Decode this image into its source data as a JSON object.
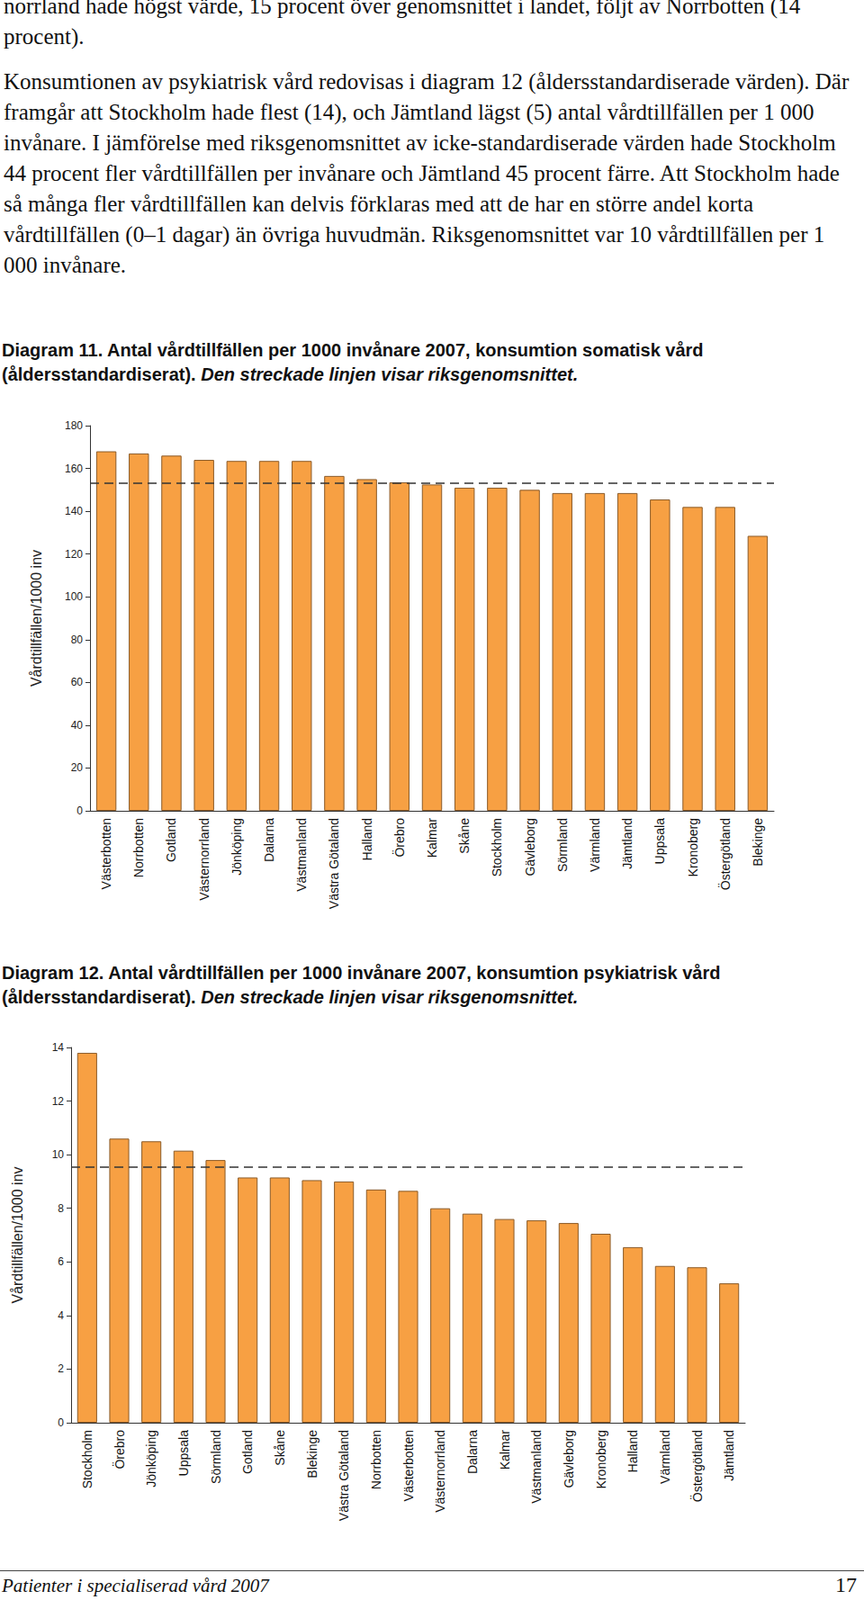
{
  "page": {
    "paragraphs": [
      "norrland hade högst värde, 15 procent över genomsnittet i landet, följt av Norrbotten (14 procent).",
      "Konsumtionen av psykiatrisk vård redovisas i diagram 12 (åldersstandardiserade värden). Där framgår att Stockholm hade flest (14), och Jämtland lägst (5) antal vårdtillfällen per 1 000 invånare. I jämförelse med riksgenomsnittet av icke-standardiserade värden hade Stockholm 44 procent fler vårdtillfällen per invånare och Jämtland 45 procent färre. Att Stockholm hade så många fler vårdtillfällen kan delvis förklaras med att de har en större andel korta vårdtillfällen (0–1 dagar) än övriga huvudmän. Riksgenomsnittet var 10 vårdtillfällen per 1 000 invånare."
    ],
    "footer": "Patienter i specialiserad vård 2007",
    "page_number": "17"
  },
  "chart_data": [
    {
      "type": "bar",
      "title": "Diagram 11. Antal vårdtillfällen per 1000 invånare 2007, konsumtion somatisk vård (åldersstandardiserat).",
      "subtitle": "Den streckade linjen visar riksgenomsnittet.",
      "y_label": "Vårdtillfällen/1000 inv",
      "categories": [
        "Västerbotten",
        "Norrbotten",
        "Gotland",
        "Västernorrland",
        "Jönköping",
        "Dalarna",
        "Västmanland",
        "Västra Götaland",
        "Halland",
        "Örebro",
        "Kalmar",
        "Skåne",
        "Stockholm",
        "Gävleborg",
        "Sörmland",
        "Värmland",
        "Jämtland",
        "Uppsala",
        "Kronoberg",
        "Östergötland",
        "Blekinge"
      ],
      "values": [
        168,
        167,
        166,
        164,
        163.5,
        163.5,
        163.5,
        156.5,
        155,
        153.5,
        152.5,
        151,
        151,
        150,
        148.5,
        148.5,
        148.5,
        145.5,
        142,
        142,
        128.5
      ],
      "average": 153,
      "color": "#f7a043",
      "ylim": [
        0,
        180
      ],
      "yticks": [
        0,
        20,
        40,
        60,
        80,
        100,
        120,
        140,
        160,
        180
      ],
      "grid": false
    },
    {
      "type": "bar",
      "title": "Diagram 12. Antal vårdtillfällen per 1000 invånare 2007, konsumtion psykiatrisk vård (åldersstandardiserat).",
      "subtitle": "Den streckade linjen visar riksgenomsnittet.",
      "y_label": "Vårdtillfällen/1000 inv",
      "categories": [
        "Stockholm",
        "Örebro",
        "Jönköping",
        "Uppsala",
        "Sörmland",
        "Gotland",
        "Skåne",
        "Blekinge",
        "Västra Götaland",
        "Norrbotten",
        "Västerbotten",
        "Västernorrland",
        "Dalarna",
        "Kalmar",
        "Västmanland",
        "Gävleborg",
        "Kronoberg",
        "Halland",
        "Värmland",
        "Östergötland",
        "Jämtland"
      ],
      "values": [
        13.8,
        10.6,
        10.5,
        10.15,
        9.8,
        9.15,
        9.15,
        9.05,
        9.0,
        8.7,
        8.65,
        8.0,
        7.8,
        7.6,
        7.55,
        7.45,
        7.05,
        6.55,
        5.85,
        5.8,
        5.2
      ],
      "average": 9.55,
      "color": "#f7a043",
      "ylim": [
        0,
        14
      ],
      "yticks": [
        0,
        2,
        4,
        6,
        8,
        10,
        12,
        14
      ],
      "grid": false
    }
  ]
}
